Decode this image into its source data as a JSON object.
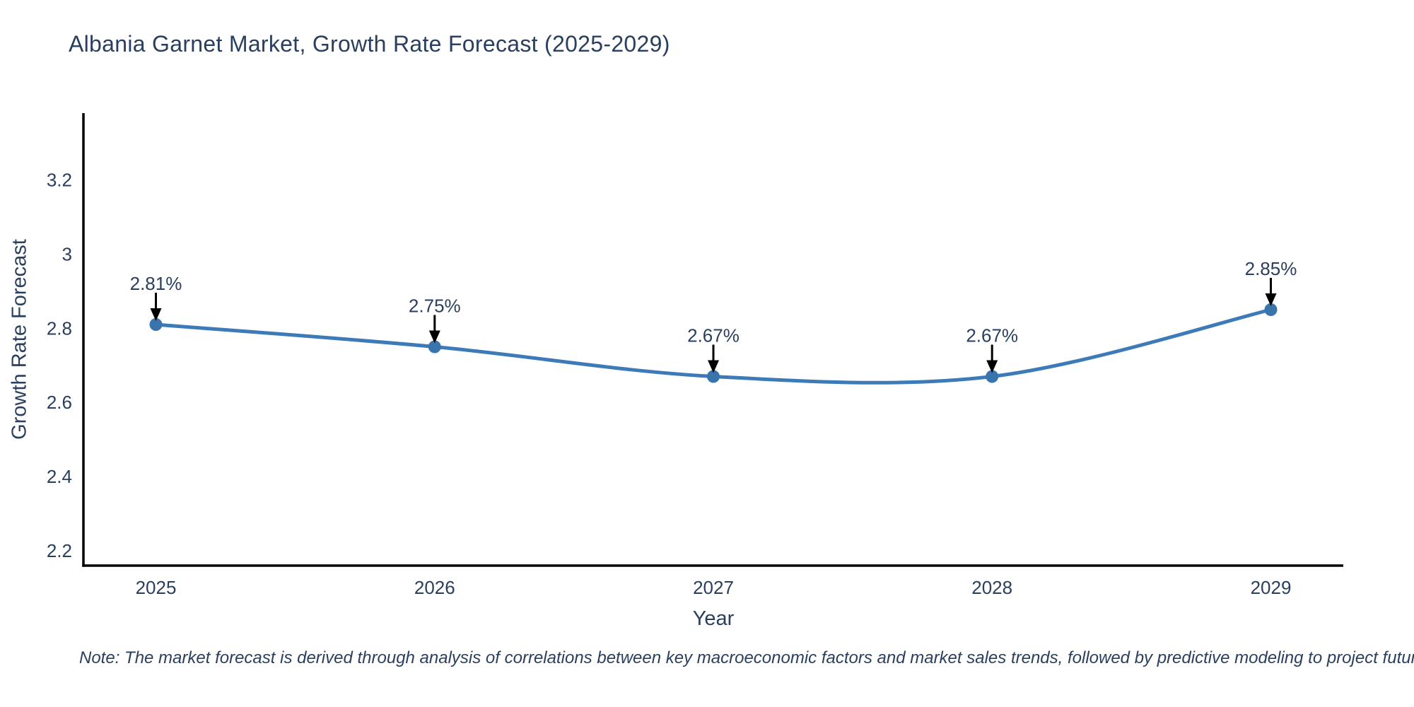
{
  "figure": {
    "footnote": "Note: The market forecast is derived through analysis of correlations between key macroeconomic factors and market sales trends, followed by predictive modeling to project future sales"
  },
  "chart_data": {
    "type": "line",
    "title": "Albania Garnet Market, Growth Rate Forecast (2025-2029)",
    "xlabel": "Year",
    "ylabel": "Growth Rate Forecast",
    "x": [
      2025,
      2026,
      2027,
      2028,
      2029
    ],
    "y": [
      2.81,
      2.75,
      2.67,
      2.67,
      2.85
    ],
    "point_labels": [
      "2.81%",
      "2.75%",
      "2.67%",
      "2.67%",
      "2.85%"
    ],
    "xtick_values": [
      2025,
      2026,
      2027,
      2028,
      2029
    ],
    "xtick_labels": [
      "2025",
      "2026",
      "2027",
      "2028",
      "2029"
    ],
    "ytick_values": [
      2.2,
      2.4,
      2.6,
      2.8,
      3.0,
      3.2
    ],
    "ytick_labels": [
      "2.2",
      "2.4",
      "2.6",
      "2.8",
      "3",
      "3.2"
    ],
    "xlim": [
      2024.74,
      2029.26
    ],
    "ylim": [
      2.16,
      3.38
    ],
    "grid": false,
    "legend": "none",
    "line_shape": "spline",
    "colors": {
      "line": "#3d7ab8",
      "marker": "#3a74ad",
      "annotation_text": "#2a3f5f",
      "annotation_arrow": "#000000",
      "axis_line": "#000000",
      "text": "#2a3f5f",
      "background": "#ffffff"
    }
  }
}
